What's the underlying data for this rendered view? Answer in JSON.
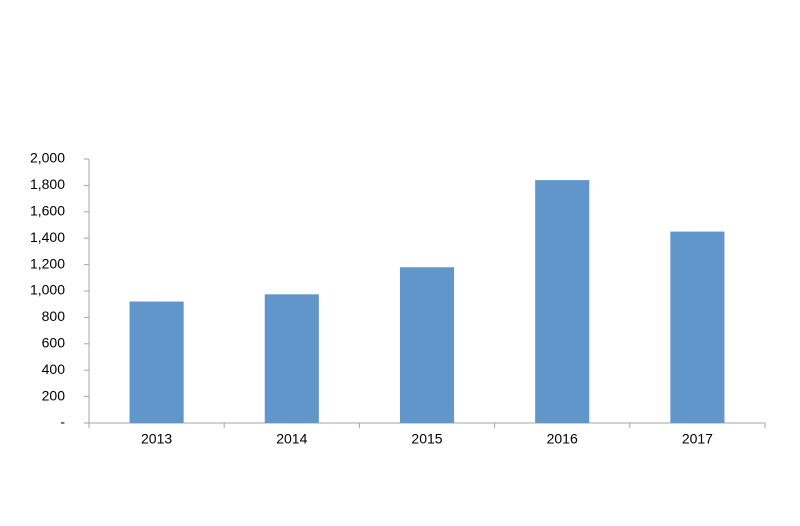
{
  "chart_data": {
    "type": "bar",
    "categories": [
      "2013",
      "2014",
      "2015",
      "2016",
      "2017"
    ],
    "values": [
      920,
      975,
      1180,
      1840,
      1450
    ],
    "color": "#6096c9",
    "ylim": [
      0,
      2000
    ],
    "yticks": [
      {
        "value": 0,
        "label": "-"
      },
      200,
      400,
      600,
      800,
      {
        "value": 1000,
        "label": "1,000"
      },
      {
        "value": 1200,
        "label": "1,200"
      },
      {
        "value": 1400,
        "label": "1,400"
      },
      {
        "value": 1600,
        "label": "1,600"
      },
      {
        "value": 1800,
        "label": "1,800"
      },
      {
        "value": 2000,
        "label": "2,000"
      }
    ],
    "grid": false
  }
}
